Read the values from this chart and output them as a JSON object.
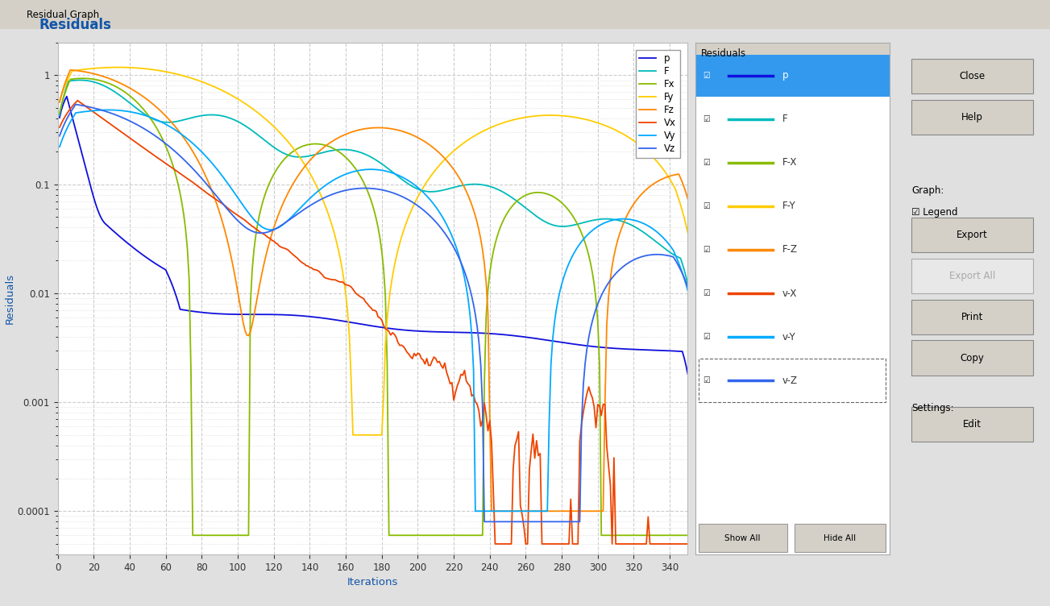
{
  "title": "Residuals",
  "xlabel": "Iterations",
  "ylabel": "Residuals",
  "ylim": [
    4e-05,
    2.0
  ],
  "xlim": [
    0,
    350
  ],
  "xticks": [
    0,
    20,
    40,
    60,
    80,
    100,
    120,
    140,
    160,
    180,
    200,
    220,
    240,
    260,
    280,
    300,
    320,
    340
  ],
  "ytick_vals": [
    0.0001,
    0.001,
    0.01,
    0.1,
    1
  ],
  "ytick_labels": [
    "0.0001",
    "0.001",
    "0.01",
    "0.1",
    "1"
  ],
  "legend_labels": [
    "p",
    "F",
    "Fx",
    "Fy",
    "Fz",
    "Vx",
    "Vy",
    "Vz"
  ],
  "right_labels": [
    "p",
    "F",
    "F-X",
    "F-Y",
    "F-Z",
    "v-X",
    "v-Y",
    "v-Z"
  ],
  "colors": {
    "p": "#1010DD",
    "F": "#00BBBB",
    "Fx": "#88BB00",
    "Fy": "#FFCC00",
    "Fz": "#FF8800",
    "Vx": "#EE4400",
    "Vy": "#00AAFF",
    "Vz": "#3366EE"
  },
  "bg_color": "#e0e0e0",
  "plot_bg": "#ffffff",
  "title_color": "#1155AA",
  "axes_label_color": "#1155AA",
  "grid_color": "#cccccc",
  "n_iter": 350
}
